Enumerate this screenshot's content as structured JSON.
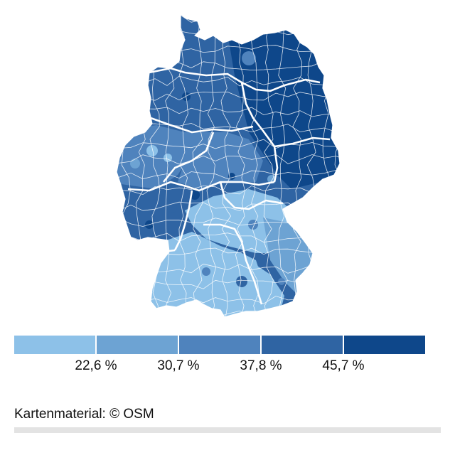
{
  "map": {
    "region_classes": {
      "north_west": 3,
      "north": 3,
      "north_east": 4,
      "east": 4,
      "west": 2,
      "center": 2,
      "south_west": 3,
      "bavaria": 0,
      "bavaria_east": 1,
      "bw": 0
    }
  },
  "legend": {
    "colors": [
      "#8dc1e8",
      "#6da3d3",
      "#4f83bd",
      "#2f64a3",
      "#0e478a"
    ],
    "breaks": [
      "22,6 %",
      "30,7 %",
      "37,8 %",
      "45,7 %"
    ]
  },
  "credit": "Kartenmaterial: © OSM"
}
